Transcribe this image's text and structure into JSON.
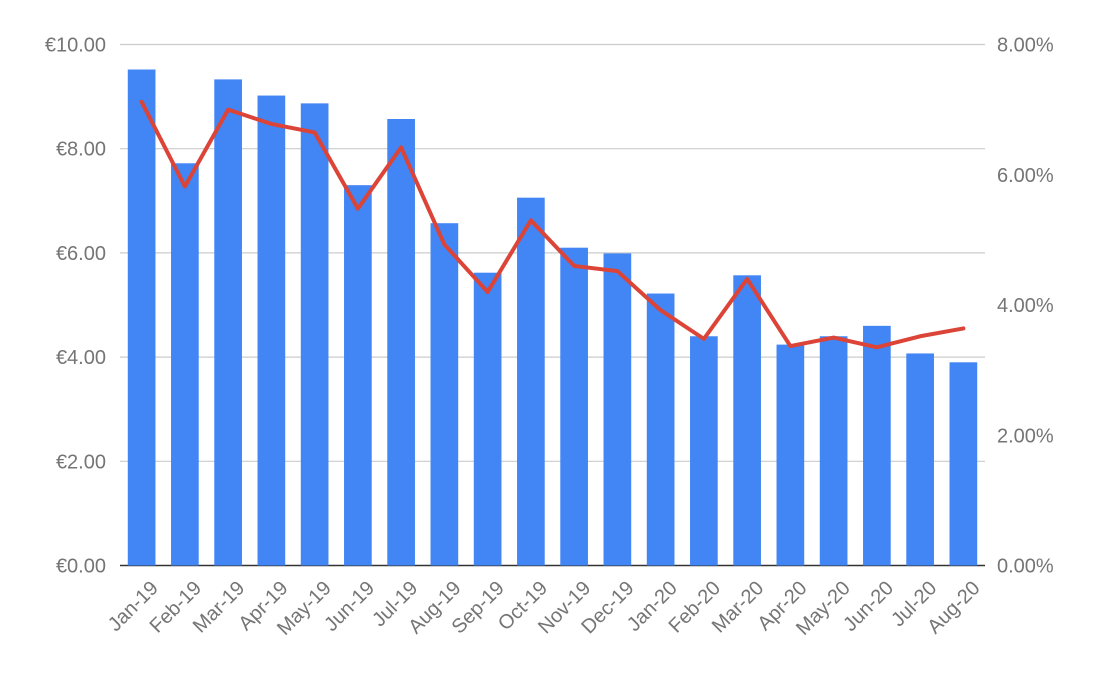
{
  "chart_data": {
    "type": "bar",
    "title": "",
    "xlabel": "",
    "ylabel": "",
    "categories": [
      "Jan-19",
      "Feb-19",
      "Mar-19",
      "Apr-19",
      "May-19",
      "Jun-19",
      "Jul-19",
      "Aug-19",
      "Sep-19",
      "Oct-19",
      "Nov-19",
      "Dec-19",
      "Jan-20",
      "Feb-20",
      "Mar-20",
      "Apr-20",
      "May-20",
      "Jun-20",
      "Jul-20",
      "Aug-20"
    ],
    "ylim": [
      0,
      10
    ],
    "y2lim": [
      0,
      8
    ],
    "y_ticks": [
      "€0.00",
      "€2.00",
      "€4.00",
      "€6.00",
      "€8.00",
      "€10.00"
    ],
    "y2_ticks": [
      "0.00%",
      "2.00%",
      "4.00%",
      "6.00%",
      "8.00%"
    ],
    "grid": true,
    "legend": "none",
    "series": [
      {
        "type": "bar",
        "axis": "left",
        "color": "#4285f4",
        "values": [
          9.52,
          7.72,
          9.33,
          9.02,
          8.87,
          7.3,
          8.57,
          6.57,
          5.62,
          7.06,
          6.1,
          5.99,
          5.22,
          4.4,
          5.57,
          4.24,
          4.4,
          4.6,
          4.07,
          3.9
        ]
      },
      {
        "type": "line",
        "axis": "right",
        "color": "#db4437",
        "values": [
          7.12,
          5.82,
          7.0,
          6.78,
          6.65,
          5.48,
          6.42,
          4.93,
          4.2,
          5.3,
          4.6,
          4.52,
          3.92,
          3.48,
          4.4,
          3.37,
          3.5,
          3.35,
          3.52,
          3.64
        ]
      }
    ]
  }
}
